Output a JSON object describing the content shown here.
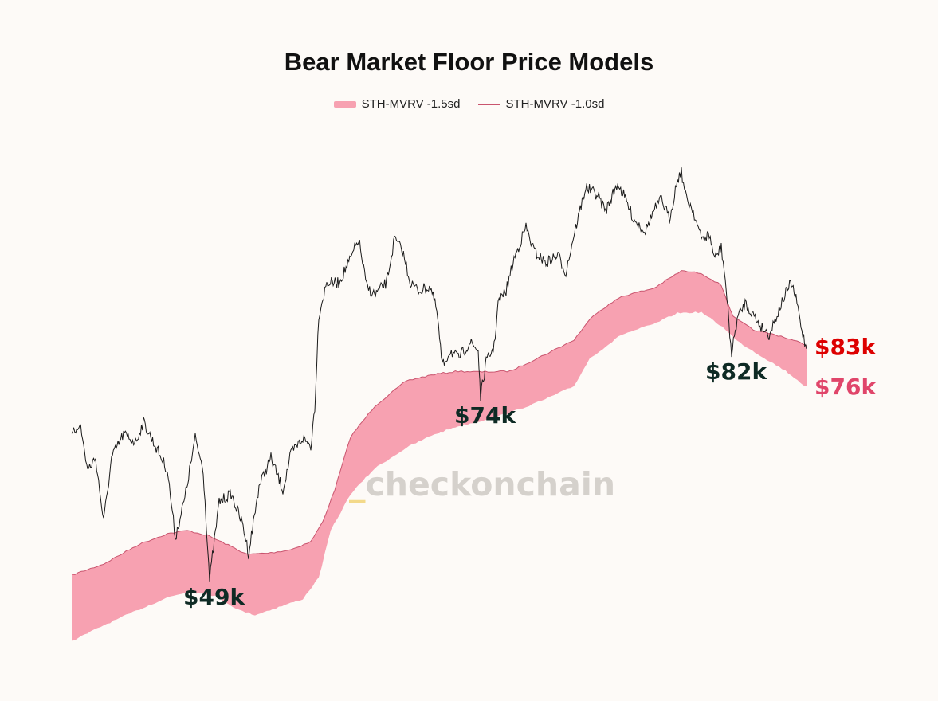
{
  "chart_data": {
    "type": "line",
    "title": "Bear Market Floor Price Models",
    "series": [
      {
        "name": "STH-MVRV -1.5sd",
        "kind": "band-lower",
        "color": "#f7a1b1"
      },
      {
        "name": "STH-MVRV -1.0sd",
        "kind": "band-upper",
        "color": "#c9546e"
      },
      {
        "kind": "price",
        "color": "#1a1a1a"
      }
    ],
    "annotations": [
      {
        "text": "$49k",
        "color": "#0e2a24"
      },
      {
        "text": "$74k",
        "color": "#0e2a24"
      },
      {
        "text": "$82k",
        "color": "#0e2a24"
      },
      {
        "text": "$83k",
        "color": "#dd0000"
      },
      {
        "text": "$76k",
        "color": "#e0456a"
      }
    ],
    "watermark": {
      "prefix": "_",
      "text": "checkonchain"
    },
    "grid": false,
    "legend_position": "top-center"
  }
}
